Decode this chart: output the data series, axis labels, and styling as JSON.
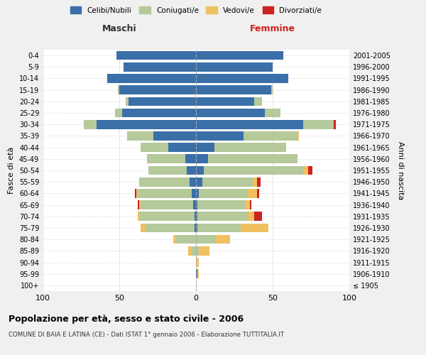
{
  "age_groups": [
    "100+",
    "95-99",
    "90-94",
    "85-89",
    "80-84",
    "75-79",
    "70-74",
    "65-69",
    "60-64",
    "55-59",
    "50-54",
    "45-49",
    "40-44",
    "35-39",
    "30-34",
    "25-29",
    "20-24",
    "15-19",
    "10-14",
    "5-9",
    "0-4"
  ],
  "birth_years": [
    "≤ 1905",
    "1906-1910",
    "1911-1915",
    "1916-1920",
    "1921-1925",
    "1926-1930",
    "1931-1935",
    "1936-1940",
    "1941-1945",
    "1946-1950",
    "1951-1955",
    "1956-1960",
    "1961-1965",
    "1966-1970",
    "1971-1975",
    "1976-1980",
    "1981-1985",
    "1986-1990",
    "1991-1995",
    "1996-2000",
    "2001-2005"
  ],
  "male": {
    "celibi": [
      0,
      0,
      0,
      0,
      0,
      1,
      1,
      2,
      3,
      4,
      6,
      7,
      18,
      28,
      65,
      48,
      44,
      50,
      58,
      47,
      52
    ],
    "coniugati": [
      0,
      0,
      0,
      3,
      13,
      32,
      36,
      34,
      35,
      33,
      25,
      25,
      18,
      17,
      8,
      5,
      2,
      1,
      0,
      0,
      0
    ],
    "vedovi": [
      0,
      0,
      0,
      2,
      2,
      3,
      1,
      1,
      1,
      0,
      0,
      0,
      0,
      0,
      0,
      0,
      0,
      0,
      0,
      0,
      0
    ],
    "divorziati": [
      0,
      0,
      0,
      0,
      0,
      0,
      0,
      1,
      1,
      0,
      0,
      0,
      0,
      0,
      0,
      0,
      0,
      0,
      0,
      0,
      0
    ]
  },
  "female": {
    "nubili": [
      0,
      1,
      0,
      0,
      0,
      1,
      1,
      1,
      2,
      4,
      5,
      8,
      12,
      31,
      70,
      45,
      38,
      49,
      60,
      50,
      57
    ],
    "coniugate": [
      0,
      0,
      0,
      2,
      13,
      28,
      33,
      31,
      32,
      33,
      65,
      58,
      47,
      35,
      20,
      10,
      5,
      1,
      0,
      0,
      0
    ],
    "vedove": [
      0,
      1,
      2,
      7,
      9,
      18,
      4,
      3,
      6,
      3,
      3,
      0,
      0,
      1,
      0,
      0,
      0,
      0,
      0,
      0,
      0
    ],
    "divorziate": [
      0,
      0,
      0,
      0,
      0,
      0,
      5,
      1,
      1,
      2,
      3,
      0,
      0,
      0,
      1,
      0,
      0,
      0,
      0,
      0,
      0
    ]
  },
  "colors": {
    "celibi": "#3a6fa8",
    "coniugati": "#b5c99a",
    "vedovi": "#f0c060",
    "divorziati": "#cc2222"
  },
  "title": "Popolazione per età, sesso e stato civile - 2006",
  "subtitle": "COMUNE DI BAIA E LATINA (CE) - Dati ISTAT 1° gennaio 2006 - Elaborazione TUTTITALIA.IT",
  "xlabel_left": "Maschi",
  "xlabel_right": "Femmine",
  "ylabel_left": "Fasce di età",
  "ylabel_right": "Anni di nascita",
  "xlim": 100,
  "legend_labels": [
    "Celibi/Nubili",
    "Coniugati/e",
    "Vedovi/e",
    "Divorziati/e"
  ],
  "bg_color": "#f0f0f0",
  "plot_bg": "#ffffff"
}
